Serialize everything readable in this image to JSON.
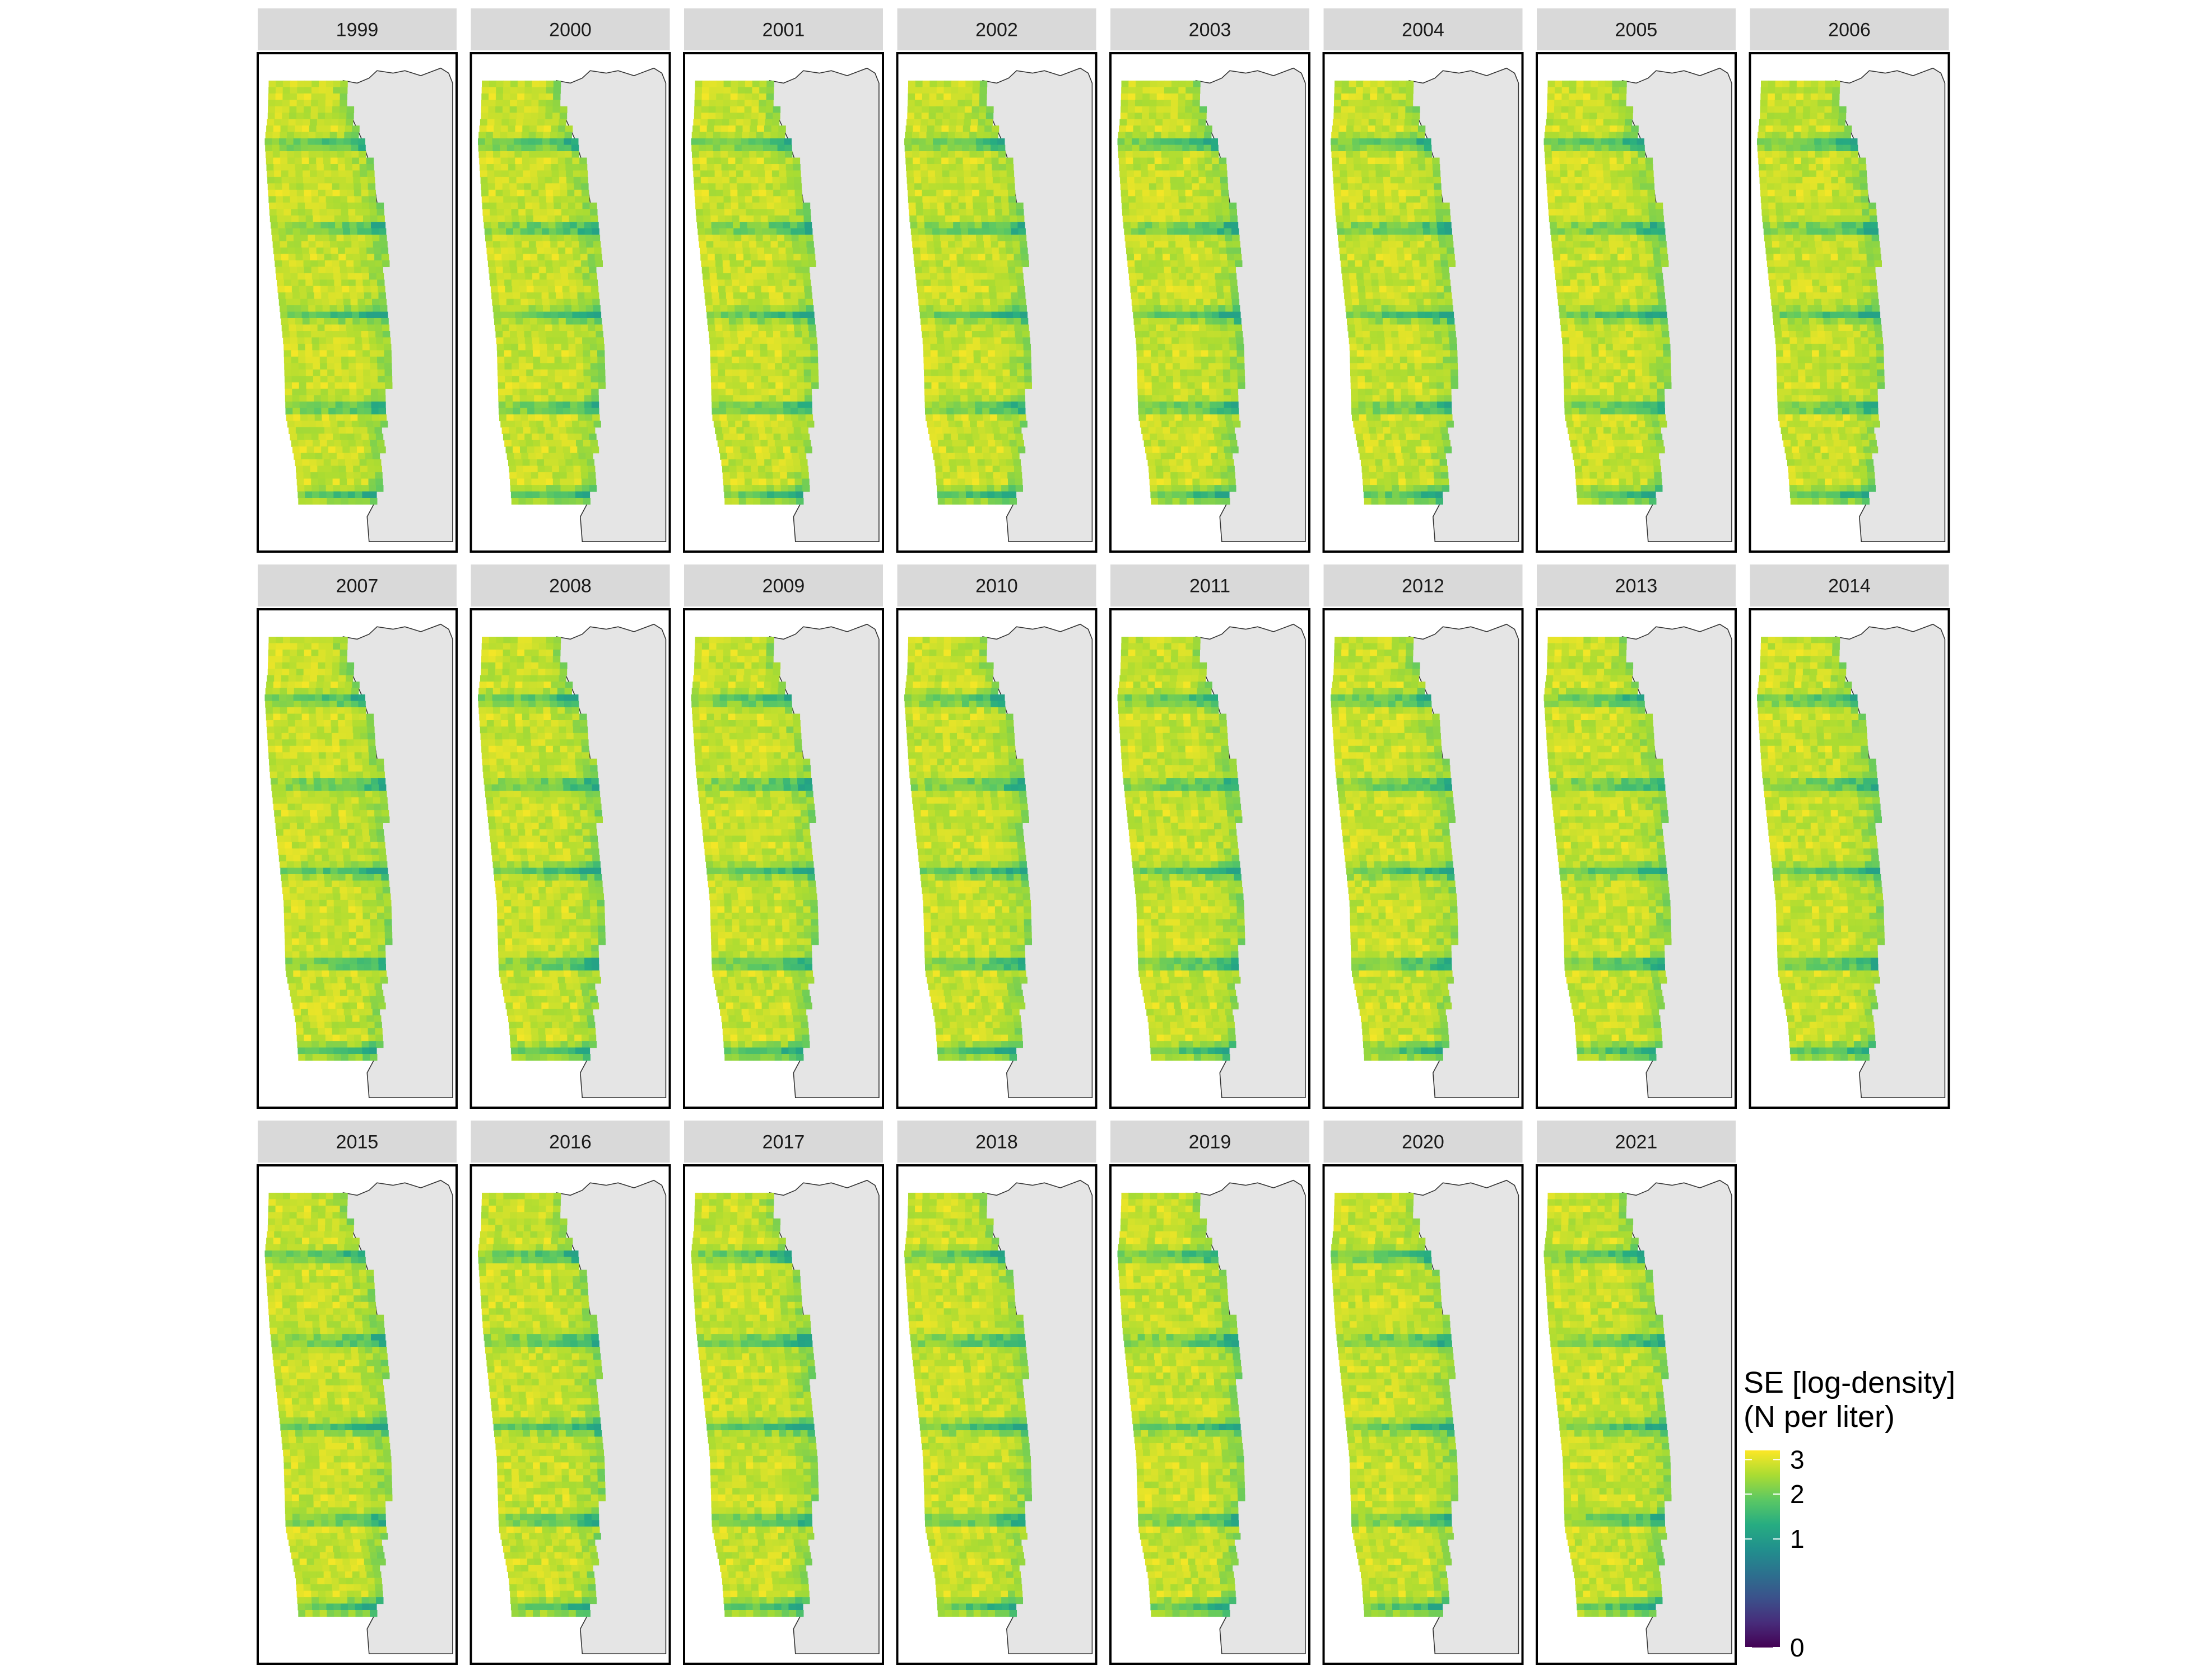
{
  "chart_data": {
    "type": "heatmap",
    "facet_variable": "year",
    "facets": [
      "1999",
      "2000",
      "2001",
      "2002",
      "2003",
      "2004",
      "2005",
      "2006",
      "2007",
      "2008",
      "2009",
      "2010",
      "2011",
      "2012",
      "2013",
      "2014",
      "2015",
      "2016",
      "2017",
      "2018",
      "2019",
      "2020",
      "2021"
    ],
    "facet_layout": {
      "rows": 3,
      "cols": 8
    },
    "legend": {
      "title_lines": [
        "SE [log-density]",
        "(N per liter)"
      ],
      "ticks": [
        {
          "value": 3,
          "label": "3"
        },
        {
          "value": 2,
          "label": "2"
        },
        {
          "value": 1,
          "label": "1"
        },
        {
          "value": 0,
          "label": "0"
        }
      ],
      "scale": "sqrt",
      "range": [
        0,
        3.3
      ],
      "placement": "right",
      "palette": [
        "#440154",
        "#472c7a",
        "#3b518b",
        "#2c718e",
        "#21908d",
        "#27ad81",
        "#5cc863",
        "#aadc32",
        "#fde725"
      ]
    },
    "typical_value_range": [
      1.1,
      3.2
    ],
    "xlabel": "",
    "ylabel": "",
    "land_color": "#e5e5e5",
    "strip_color": "#d9d9d9"
  }
}
